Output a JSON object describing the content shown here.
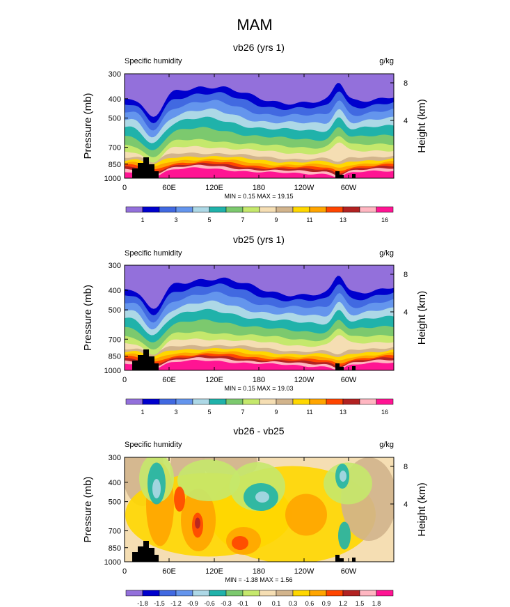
{
  "title": "MAM",
  "palette_abs": [
    "#9370db",
    "#0000cd",
    "#4169e1",
    "#6495ed",
    "#add8e6",
    "#20b2aa",
    "#7cc96e",
    "#c5e86c",
    "#f5deb3",
    "#d2b48c",
    "#ffd700",
    "#ffa500",
    "#ff4500",
    "#b22222",
    "#ffb6c1",
    "#ff1493"
  ],
  "palette_diff": [
    "#9370db",
    "#0000cd",
    "#4169e1",
    "#6495ed",
    "#add8e6",
    "#20b2aa",
    "#7cc96e",
    "#c5e86c",
    "#f5deb3",
    "#d2b48c",
    "#ffd700",
    "#ffa500",
    "#ff4500",
    "#b22222",
    "#ffb6c1",
    "#ff1493"
  ],
  "chart_data": [
    {
      "type": "heatmap",
      "title": "vb26 (yrs 1)",
      "left_label": "Specific humidity",
      "units": "g/kg",
      "ylabel": "Pressure (mb)",
      "y2label": "Height (km)",
      "y_ticks": [
        "300",
        "400",
        "500",
        "700",
        "850",
        "1000"
      ],
      "y2_ticks": [
        "8",
        "4"
      ],
      "x_ticks": [
        "0",
        "60E",
        "120E",
        "180",
        "120W",
        "60W"
      ],
      "ylim": [
        1000,
        300
      ],
      "stats": "MIN =  0.15  MAX =  19.15",
      "colorbar_labels": [
        "1",
        "3",
        "5",
        "7",
        "9",
        "11",
        "13",
        "16"
      ]
    },
    {
      "type": "heatmap",
      "title": "vb25 (yrs 1)",
      "left_label": "Specific humidity",
      "units": "g/kg",
      "ylabel": "Pressure (mb)",
      "y2label": "Height (km)",
      "y_ticks": [
        "300",
        "400",
        "500",
        "700",
        "850",
        "1000"
      ],
      "y2_ticks": [
        "8",
        "4"
      ],
      "x_ticks": [
        "0",
        "60E",
        "120E",
        "180",
        "120W",
        "60W"
      ],
      "ylim": [
        1000,
        300
      ],
      "stats": "MIN =  0.15  MAX =  19.03",
      "colorbar_labels": [
        "1",
        "3",
        "5",
        "7",
        "9",
        "11",
        "13",
        "16"
      ]
    },
    {
      "type": "heatmap",
      "title": "vb26 - vb25",
      "left_label": "Specific humidity",
      "units": "g/kg",
      "ylabel": "Pressure (mb)",
      "y2label": "Height (km)",
      "y_ticks": [
        "300",
        "400",
        "500",
        "700",
        "850",
        "1000"
      ],
      "y2_ticks": [
        "8",
        "4"
      ],
      "x_ticks": [
        "0",
        "60E",
        "120E",
        "180",
        "120W",
        "60W"
      ],
      "ylim": [
        1000,
        300
      ],
      "stats": "MIN = -1.38  MAX =  1.56",
      "colorbar_labels": [
        "-1.8",
        "-1.5",
        "-1.2",
        "-0.9",
        "-0.6",
        "-0.3",
        "-0.1",
        "0",
        "0.1",
        "0.3",
        "0.6",
        "0.9",
        "1.2",
        "1.5",
        "1.8"
      ]
    }
  ]
}
